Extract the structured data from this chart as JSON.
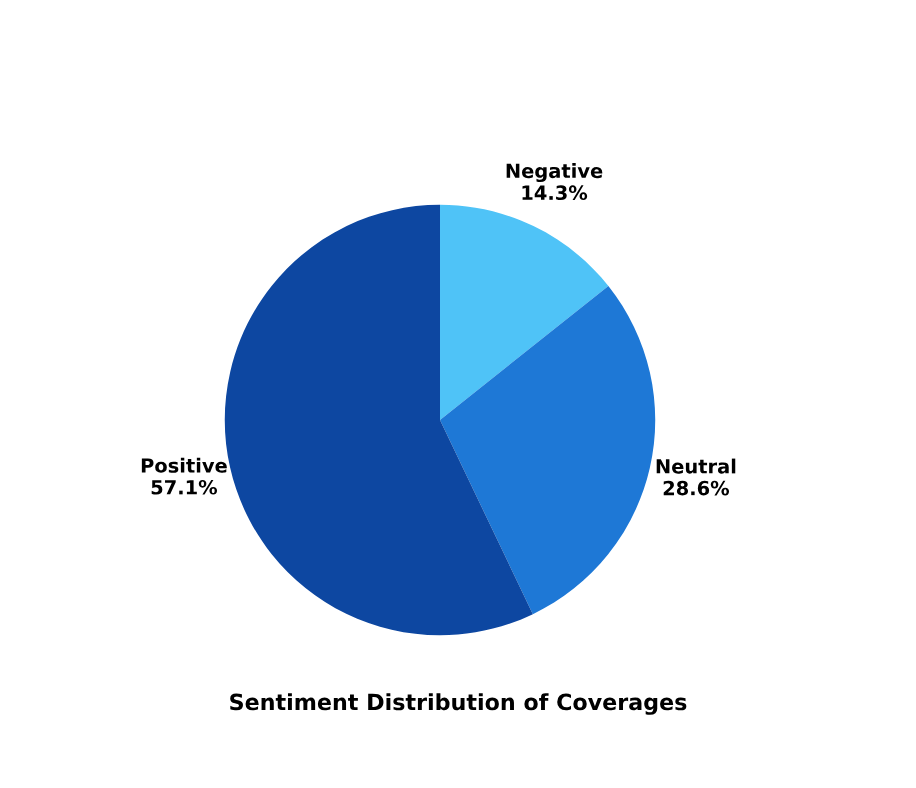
{
  "chart_data": {
    "type": "pie",
    "title": "Sentiment Distribution of Coverages",
    "categories": [
      "Negative",
      "Neutral",
      "Positive"
    ],
    "values": [
      14.3,
      28.6,
      57.1
    ],
    "value_labels": [
      "14.3%",
      "28.6%",
      "57.1%"
    ],
    "colors": [
      "#4fc3f7",
      "#1e78d6",
      "#0d47a1"
    ],
    "legend": false
  }
}
